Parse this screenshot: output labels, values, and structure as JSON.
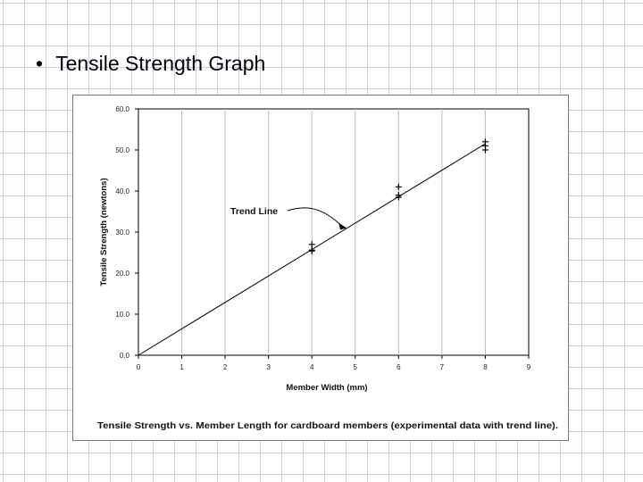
{
  "slide": {
    "bullet": "•",
    "title": "Tensile Strength Graph"
  },
  "chart_data": {
    "type": "scatter",
    "title": "",
    "caption": "Tensile Strength vs. Member Length for cardboard members (experimental data with trend line).",
    "xlabel": "Member Width (mm)",
    "ylabel": "Tensile Strength (newtons)",
    "xlim": [
      0,
      9
    ],
    "ylim": [
      0,
      60
    ],
    "x_ticks": [
      "0",
      "1",
      "2",
      "3",
      "4",
      "5",
      "6",
      "7",
      "8",
      "9"
    ],
    "y_ticks": [
      "0.0",
      "10.0",
      "20.0",
      "30.0",
      "40.0",
      "50.0",
      "60.0"
    ],
    "x_tick_values": [
      0,
      1,
      2,
      3,
      4,
      5,
      6,
      7,
      8,
      9
    ],
    "y_tick_values": [
      0,
      10,
      20,
      30,
      40,
      50,
      60
    ],
    "grid": "vertical",
    "series": [
      {
        "values": [
          {
            "x": 4,
            "y": 27.0
          },
          {
            "x": 4,
            "y": 25.6
          },
          {
            "x": 4,
            "y": 25.4
          },
          {
            "x": 6,
            "y": 41.0
          },
          {
            "x": 6,
            "y": 39.0
          },
          {
            "x": 6,
            "y": 38.5
          },
          {
            "x": 8,
            "y": 52.0
          },
          {
            "x": 8,
            "y": 51.0
          },
          {
            "x": 8,
            "y": 50.0
          }
        ],
        "marker": "plus",
        "color": "#000000"
      }
    ],
    "trend_line": {
      "x": [
        0,
        8
      ],
      "y": [
        0,
        51.5
      ],
      "color": "#000000"
    },
    "annotation": {
      "text": "Trend Line",
      "points_to": {
        "x": 4.8,
        "y": 31.0
      }
    }
  }
}
